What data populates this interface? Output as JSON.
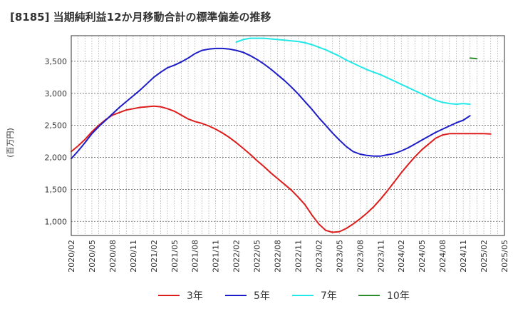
{
  "chart_data": {
    "type": "line",
    "title": "[8185]  当期純利益12か月移動合計の標準偏差の推移",
    "ylabel": "(百万円)",
    "xlabel": "",
    "x_ticks": [
      "2020/02",
      "2020/05",
      "2020/08",
      "2020/11",
      "2021/02",
      "2021/05",
      "2021/08",
      "2021/11",
      "2022/02",
      "2022/05",
      "2022/08",
      "2022/11",
      "2023/02",
      "2023/05",
      "2023/08",
      "2023/11",
      "2024/02",
      "2024/05",
      "2024/08",
      "2024/11",
      "2025/02",
      "2025/05"
    ],
    "y_ticks": [
      1000,
      1500,
      2000,
      2500,
      3000,
      3500
    ],
    "y_tick_labels": [
      "1,000",
      "1,500",
      "2,000",
      "2,500",
      "3,000",
      "3,500"
    ],
    "xlim": [
      "2020/02",
      "2025/05"
    ],
    "ylim": [
      780,
      3900
    ],
    "grid": true,
    "legend_position": "bottom",
    "series": [
      {
        "name": "3年",
        "color": "#dd1c1c",
        "points": [
          [
            "2020/02",
            2090
          ],
          [
            "2020/03",
            2180
          ],
          [
            "2020/04",
            2280
          ],
          [
            "2020/05",
            2400
          ],
          [
            "2020/06",
            2500
          ],
          [
            "2020/07",
            2590
          ],
          [
            "2020/08",
            2660
          ],
          [
            "2020/09",
            2700
          ],
          [
            "2020/10",
            2740
          ],
          [
            "2020/11",
            2760
          ],
          [
            "2020/12",
            2780
          ],
          [
            "2021/01",
            2790
          ],
          [
            "2021/02",
            2800
          ],
          [
            "2021/03",
            2790
          ],
          [
            "2021/04",
            2760
          ],
          [
            "2021/05",
            2720
          ],
          [
            "2021/06",
            2660
          ],
          [
            "2021/07",
            2600
          ],
          [
            "2021/08",
            2560
          ],
          [
            "2021/09",
            2530
          ],
          [
            "2021/10",
            2490
          ],
          [
            "2021/11",
            2440
          ],
          [
            "2021/12",
            2380
          ],
          [
            "2022/01",
            2310
          ],
          [
            "2022/02",
            2230
          ],
          [
            "2022/03",
            2140
          ],
          [
            "2022/04",
            2050
          ],
          [
            "2022/05",
            1950
          ],
          [
            "2022/06",
            1860
          ],
          [
            "2022/07",
            1760
          ],
          [
            "2022/08",
            1670
          ],
          [
            "2022/09",
            1580
          ],
          [
            "2022/10",
            1490
          ],
          [
            "2022/11",
            1380
          ],
          [
            "2022/12",
            1260
          ],
          [
            "2023/01",
            1100
          ],
          [
            "2023/02",
            960
          ],
          [
            "2023/03",
            860
          ],
          [
            "2023/04",
            830
          ],
          [
            "2023/05",
            840
          ],
          [
            "2023/06",
            890
          ],
          [
            "2023/07",
            960
          ],
          [
            "2023/08",
            1040
          ],
          [
            "2023/09",
            1130
          ],
          [
            "2023/10",
            1230
          ],
          [
            "2023/11",
            1350
          ],
          [
            "2023/12",
            1480
          ],
          [
            "2024/01",
            1620
          ],
          [
            "2024/02",
            1760
          ],
          [
            "2024/03",
            1890
          ],
          [
            "2024/04",
            2010
          ],
          [
            "2024/05",
            2120
          ],
          [
            "2024/06",
            2210
          ],
          [
            "2024/07",
            2300
          ],
          [
            "2024/08",
            2350
          ],
          [
            "2024/09",
            2370
          ],
          [
            "2024/10",
            2370
          ],
          [
            "2024/11",
            2370
          ],
          [
            "2024/12",
            2370
          ],
          [
            "2025/01",
            2370
          ],
          [
            "2025/02",
            2370
          ],
          [
            "2025/03",
            2365
          ]
        ]
      },
      {
        "name": "5年",
        "color": "#1c1cc8",
        "points": [
          [
            "2020/02",
            1980
          ],
          [
            "2020/03",
            2100
          ],
          [
            "2020/04",
            2230
          ],
          [
            "2020/05",
            2370
          ],
          [
            "2020/06",
            2480
          ],
          [
            "2020/07",
            2580
          ],
          [
            "2020/08",
            2680
          ],
          [
            "2020/09",
            2780
          ],
          [
            "2020/10",
            2870
          ],
          [
            "2020/11",
            2960
          ],
          [
            "2020/12",
            3050
          ],
          [
            "2021/01",
            3150
          ],
          [
            "2021/02",
            3250
          ],
          [
            "2021/03",
            3330
          ],
          [
            "2021/04",
            3400
          ],
          [
            "2021/05",
            3440
          ],
          [
            "2021/06",
            3490
          ],
          [
            "2021/07",
            3550
          ],
          [
            "2021/08",
            3620
          ],
          [
            "2021/09",
            3670
          ],
          [
            "2021/10",
            3690
          ],
          [
            "2021/11",
            3700
          ],
          [
            "2021/12",
            3700
          ],
          [
            "2022/01",
            3690
          ],
          [
            "2022/02",
            3670
          ],
          [
            "2022/03",
            3640
          ],
          [
            "2022/04",
            3590
          ],
          [
            "2022/05",
            3530
          ],
          [
            "2022/06",
            3460
          ],
          [
            "2022/07",
            3380
          ],
          [
            "2022/08",
            3290
          ],
          [
            "2022/09",
            3200
          ],
          [
            "2022/10",
            3100
          ],
          [
            "2022/11",
            2990
          ],
          [
            "2022/12",
            2870
          ],
          [
            "2023/01",
            2750
          ],
          [
            "2023/02",
            2620
          ],
          [
            "2023/03",
            2500
          ],
          [
            "2023/04",
            2380
          ],
          [
            "2023/05",
            2270
          ],
          [
            "2023/06",
            2170
          ],
          [
            "2023/07",
            2090
          ],
          [
            "2023/08",
            2050
          ],
          [
            "2023/09",
            2030
          ],
          [
            "2023/10",
            2020
          ],
          [
            "2023/11",
            2020
          ],
          [
            "2023/12",
            2040
          ],
          [
            "2024/01",
            2060
          ],
          [
            "2024/02",
            2100
          ],
          [
            "2024/03",
            2150
          ],
          [
            "2024/04",
            2210
          ],
          [
            "2024/05",
            2270
          ],
          [
            "2024/06",
            2330
          ],
          [
            "2024/07",
            2390
          ],
          [
            "2024/08",
            2440
          ],
          [
            "2024/09",
            2490
          ],
          [
            "2024/10",
            2540
          ],
          [
            "2024/11",
            2580
          ],
          [
            "2024/12",
            2650
          ]
        ]
      },
      {
        "name": "7年",
        "color": "#22e8e8",
        "points": [
          [
            "2022/02",
            3800
          ],
          [
            "2022/03",
            3840
          ],
          [
            "2022/04",
            3860
          ],
          [
            "2022/05",
            3860
          ],
          [
            "2022/06",
            3860
          ],
          [
            "2022/07",
            3850
          ],
          [
            "2022/08",
            3840
          ],
          [
            "2022/09",
            3830
          ],
          [
            "2022/10",
            3820
          ],
          [
            "2022/11",
            3810
          ],
          [
            "2022/12",
            3790
          ],
          [
            "2023/01",
            3760
          ],
          [
            "2023/02",
            3720
          ],
          [
            "2023/03",
            3680
          ],
          [
            "2023/04",
            3630
          ],
          [
            "2023/05",
            3580
          ],
          [
            "2023/06",
            3520
          ],
          [
            "2023/07",
            3470
          ],
          [
            "2023/08",
            3420
          ],
          [
            "2023/09",
            3370
          ],
          [
            "2023/10",
            3330
          ],
          [
            "2023/11",
            3290
          ],
          [
            "2023/12",
            3240
          ],
          [
            "2024/01",
            3190
          ],
          [
            "2024/02",
            3140
          ],
          [
            "2024/03",
            3090
          ],
          [
            "2024/04",
            3040
          ],
          [
            "2024/05",
            2990
          ],
          [
            "2024/06",
            2940
          ],
          [
            "2024/07",
            2890
          ],
          [
            "2024/08",
            2860
          ],
          [
            "2024/09",
            2840
          ],
          [
            "2024/10",
            2830
          ],
          [
            "2024/11",
            2840
          ],
          [
            "2024/12",
            2830
          ]
        ]
      },
      {
        "name": "10年",
        "color": "#2a8c2a",
        "points": [
          [
            "2024/12",
            3550
          ],
          [
            "2025/01",
            3540
          ]
        ]
      }
    ]
  }
}
